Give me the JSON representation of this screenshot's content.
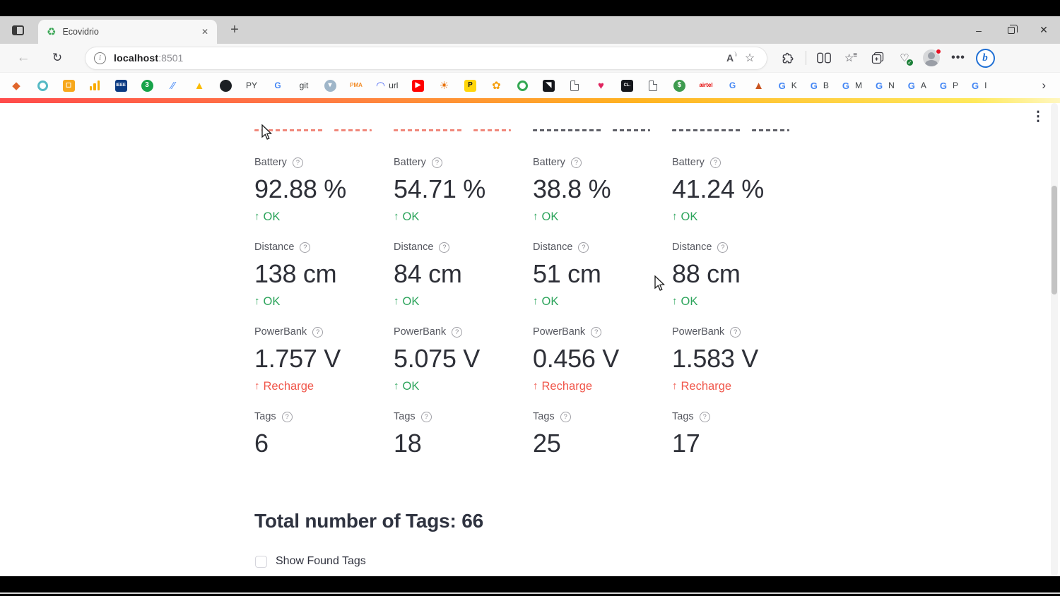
{
  "chrome": {
    "tab": {
      "title": "Ecovidrio",
      "favicon": "recycling-symbol"
    },
    "tab_close_glyph": "✕",
    "new_tab_glyph": "+",
    "window": {
      "minimize_glyph": "–",
      "close_glyph": "✕"
    },
    "nav": {
      "back_glyph": "←",
      "refresh_glyph": "↻"
    },
    "url": {
      "info_glyph": "i",
      "host": "localhost",
      "port": ":8501"
    },
    "pill": {
      "read_aloud_glyph": "A",
      "favorite_glyph": "☆"
    },
    "toolbar_icons": {
      "star_glyph": "☆",
      "lines_glyph": "≡",
      "heart_glyph": "♡",
      "check_glyph": "✓",
      "more_glyph": "•••",
      "copilot_glyph": "b"
    },
    "bookmarks_overflow_glyph": "›",
    "bookmarks": [
      {
        "n": "diamond-icon",
        "k": "glyph",
        "g": "◆",
        "c": "#e0662c"
      },
      {
        "n": "teal-ring-icon",
        "k": "ring",
        "c": "#55b9c4"
      },
      {
        "n": "orange-badge-icon",
        "k": "box",
        "b": "#f7a81c",
        "g": "◻",
        "c": "#fff"
      },
      {
        "n": "bar-chart-icon",
        "k": "bars",
        "c": "#f9ab00"
      },
      {
        "n": "ieee-icon",
        "k": "box",
        "b": "#0a3a82",
        "g": "IEEE",
        "c": "#fff",
        "s": 1
      },
      {
        "n": "badge-3-icon",
        "k": "circle",
        "b": "#17a34a",
        "g": "3",
        "c": "#fff"
      },
      {
        "n": "paint-slashes-icon",
        "k": "glyph",
        "g": "⁄⁄",
        "c": "#4a8cf7"
      },
      {
        "n": "ads-triangle-icon",
        "k": "glyph",
        "g": "▲",
        "c": "#fbbc04"
      },
      {
        "n": "github-icon",
        "k": "circle",
        "b": "#1b1f23",
        "g": "",
        "c": "#fff"
      },
      {
        "n": "py-bookmark",
        "k": "text",
        "g": "PY",
        "c": "#3c4043"
      },
      {
        "n": "google-g-icon",
        "k": "text",
        "g": "G",
        "c": "#4285f4",
        "s": 0,
        "bold": 1
      },
      {
        "n": "git-bookmark",
        "k": "text",
        "g": "git",
        "c": "#3c4043"
      },
      {
        "n": "water-widget-icon",
        "k": "circle",
        "b": "#9fb6c9",
        "g": "▾",
        "c": "#fff"
      },
      {
        "n": "phpmyadmin-icon",
        "k": "text",
        "g": "PMA",
        "c": "#f28c28",
        "s": 1,
        "bold": 1
      },
      {
        "n": "url-shortener-bookmark",
        "k": "labeled",
        "g": "◠",
        "c": "#4f6af5",
        "t": "url"
      },
      {
        "n": "youtube-icon",
        "k": "box",
        "b": "#ff0000",
        "g": "▶",
        "c": "#fff"
      },
      {
        "n": "sun-eye-icon",
        "k": "glyph",
        "g": "☀",
        "c": "#e8710a"
      },
      {
        "n": "p-yellow-icon",
        "k": "box",
        "b": "#ffd60a",
        "g": "P",
        "c": "#1a1a1a"
      },
      {
        "n": "orange-flower-icon",
        "k": "glyph",
        "g": "✿",
        "c": "#f59e0b"
      },
      {
        "n": "green-ring-icon",
        "k": "ring",
        "c": "#34a853"
      },
      {
        "n": "dark-app-icon",
        "k": "box",
        "b": "#15171c",
        "g": "◥",
        "c": "#fff"
      },
      {
        "n": "document-icon",
        "k": "page"
      },
      {
        "n": "heart-icon",
        "k": "glyph",
        "g": "♥",
        "c": "#e0245e"
      },
      {
        "n": "cl-icon",
        "k": "box",
        "b": "#15171c",
        "g": "CL.",
        "c": "#fff",
        "s": 1
      },
      {
        "n": "document-icon-2",
        "k": "page"
      },
      {
        "n": "s-coin-icon",
        "k": "circle",
        "b": "#3e9b4f",
        "g": "$",
        "c": "#fff"
      },
      {
        "n": "airtel-bookmark",
        "k": "text",
        "g": "airtel",
        "c": "#e40000",
        "s": 1
      },
      {
        "n": "google-g-icon-2",
        "k": "text",
        "g": "G",
        "c": "#4285f4",
        "bold": 1
      },
      {
        "n": "matlab-icon",
        "k": "glyph",
        "g": "▲",
        "c": "#c9541f"
      },
      {
        "n": "google-bookmark-k",
        "k": "gpair",
        "g": "K"
      },
      {
        "n": "google-bookmark-b",
        "k": "gpair",
        "g": "B"
      },
      {
        "n": "google-bookmark-m",
        "k": "gpair",
        "g": "M"
      },
      {
        "n": "google-bookmark-n",
        "k": "gpair",
        "g": "N"
      },
      {
        "n": "google-bookmark-a",
        "k": "gpair",
        "g": "A"
      },
      {
        "n": "google-bookmark-p",
        "k": "gpair",
        "g": "P"
      },
      {
        "n": "google-bookmark-i",
        "k": "gpair",
        "g": "I"
      }
    ]
  },
  "app": {
    "menu_glyph": "⋮",
    "help_glyph": "?",
    "delta_arrow": "↑",
    "colors": {
      "ok": "#2ca45b",
      "warn": "#f0564a",
      "clip_red": "#f0887b",
      "clip_dark": "#5f6068"
    },
    "columns": [
      {
        "clip": "clip_red",
        "metrics": [
          {
            "label": "Battery",
            "value": "92.88 %",
            "delta": "OK",
            "status": "ok"
          },
          {
            "label": "Distance",
            "value": "138 cm",
            "delta": "OK",
            "status": "ok"
          },
          {
            "label": "PowerBank",
            "value": "1.757 V",
            "delta": "Recharge",
            "status": "warn"
          },
          {
            "label": "Tags",
            "value": "6",
            "delta": null
          }
        ]
      },
      {
        "clip": "clip_red",
        "metrics": [
          {
            "label": "Battery",
            "value": "54.71 %",
            "delta": "OK",
            "status": "ok"
          },
          {
            "label": "Distance",
            "value": "84 cm",
            "delta": "OK",
            "status": "ok"
          },
          {
            "label": "PowerBank",
            "value": "5.075 V",
            "delta": "OK",
            "status": "ok"
          },
          {
            "label": "Tags",
            "value": "18",
            "delta": null
          }
        ]
      },
      {
        "clip": "clip_dark",
        "metrics": [
          {
            "label": "Battery",
            "value": "38.8 %",
            "delta": "OK",
            "status": "ok"
          },
          {
            "label": "Distance",
            "value": "51 cm",
            "delta": "OK",
            "status": "ok"
          },
          {
            "label": "PowerBank",
            "value": "0.456 V",
            "delta": "Recharge",
            "status": "warn"
          },
          {
            "label": "Tags",
            "value": "25",
            "delta": null
          }
        ]
      },
      {
        "clip": "clip_dark",
        "metrics": [
          {
            "label": "Battery",
            "value": "41.24 %",
            "delta": "OK",
            "status": "ok"
          },
          {
            "label": "Distance",
            "value": "88 cm",
            "delta": "OK",
            "status": "ok"
          },
          {
            "label": "PowerBank",
            "value": "1.583 V",
            "delta": "Recharge",
            "status": "warn"
          },
          {
            "label": "Tags",
            "value": "17",
            "delta": null
          }
        ]
      }
    ],
    "heading": "Total number of Tags: 66",
    "checkbox": {
      "label": "Show Found Tags",
      "checked": false
    }
  }
}
